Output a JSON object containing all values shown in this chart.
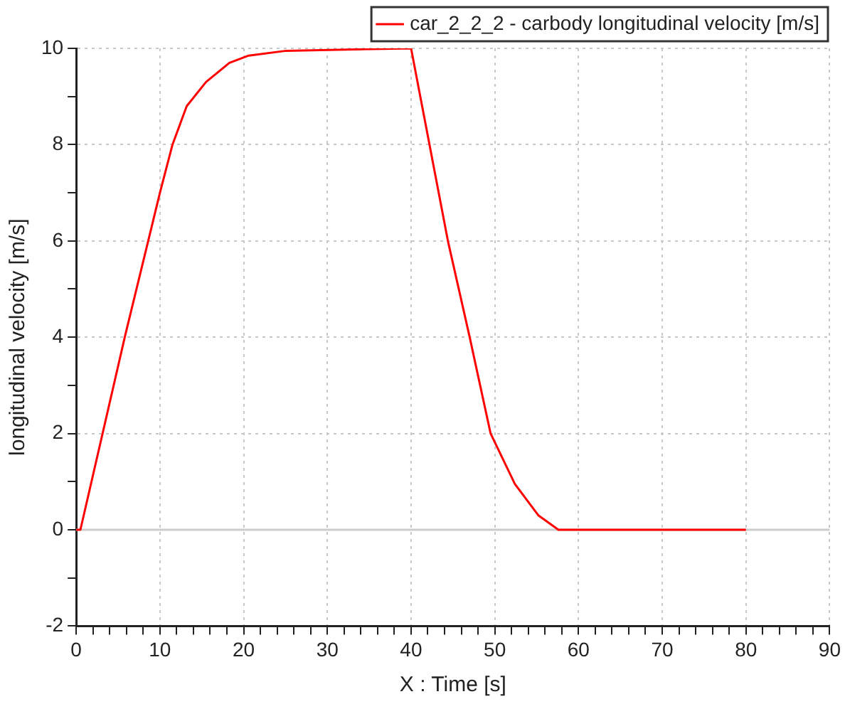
{
  "chart_data": {
    "type": "line",
    "xlabel": "X : Time [s]",
    "ylabel": "longitudinal velocity [m/s]",
    "x": [
      0,
      0.5,
      5.8,
      10,
      11.5,
      13.2,
      15.5,
      18.3,
      20.6,
      25.1,
      40,
      42.2,
      44.4,
      47,
      49.5,
      52.4,
      55.2,
      57.6,
      80
    ],
    "series": [
      {
        "name": "car_2_2_2 - carbody longitudinal velocity [m/s]",
        "color": "#ff0000",
        "values": [
          0,
          0,
          4,
          7,
          8,
          8.8,
          9.3,
          9.7,
          9.85,
          9.95,
          10,
          8,
          6,
          4,
          2,
          0.95,
          0.3,
          0,
          0
        ]
      }
    ],
    "xlim": [
      0,
      90
    ],
    "ylim": [
      -2,
      10
    ],
    "xticks": [
      0,
      {
        "value": 2,
        "label": null
      },
      {
        "value": 4,
        "label": null
      },
      {
        "value": 6,
        "label": null
      },
      {
        "value": 8,
        "label": null
      },
      10,
      {
        "value": 12,
        "label": null
      },
      {
        "value": 14,
        "label": null
      },
      {
        "value": 16,
        "label": null
      },
      {
        "value": 18,
        "label": null
      },
      20,
      {
        "value": 22,
        "label": null
      },
      {
        "value": 24,
        "label": null
      },
      {
        "value": 26,
        "label": null
      },
      {
        "value": 28,
        "label": null
      },
      30,
      {
        "value": 32,
        "label": null
      },
      {
        "value": 34,
        "label": null
      },
      {
        "value": 36,
        "label": null
      },
      {
        "value": 38,
        "label": null
      },
      40,
      {
        "value": 42,
        "label": null
      },
      {
        "value": 44,
        "label": null
      },
      {
        "value": 46,
        "label": null
      },
      {
        "value": 48,
        "label": null
      },
      50,
      {
        "value": 52,
        "label": null
      },
      {
        "value": 54,
        "label": null
      },
      {
        "value": 56,
        "label": null
      },
      {
        "value": 58,
        "label": null
      },
      60,
      {
        "value": 62,
        "label": null
      },
      {
        "value": 64,
        "label": null
      },
      {
        "value": 66,
        "label": null
      },
      {
        "value": 68,
        "label": null
      },
      70,
      {
        "value": 72,
        "label": null
      },
      {
        "value": 74,
        "label": null
      },
      {
        "value": 76,
        "label": null
      },
      {
        "value": 78,
        "label": null
      },
      80,
      {
        "value": 82,
        "label": null
      },
      {
        "value": 84,
        "label": null
      },
      {
        "value": 86,
        "label": null
      },
      {
        "value": 88,
        "label": null
      },
      90
    ],
    "yticks": [
      -2,
      {
        "value": -1,
        "label": null
      },
      0,
      {
        "value": 1,
        "label": null
      },
      2,
      {
        "value": 3,
        "label": null
      },
      4,
      {
        "value": 5,
        "label": null
      },
      6,
      {
        "value": 7,
        "label": null
      },
      8,
      {
        "value": 9,
        "label": null
      },
      10
    ],
    "ref_lines": [
      {
        "axis": "y",
        "value": 0,
        "color": "#cccccc",
        "line_style": "solid"
      }
    ],
    "grid": true,
    "legend": "top right",
    "marker": "none",
    "line_style": "solid"
  }
}
